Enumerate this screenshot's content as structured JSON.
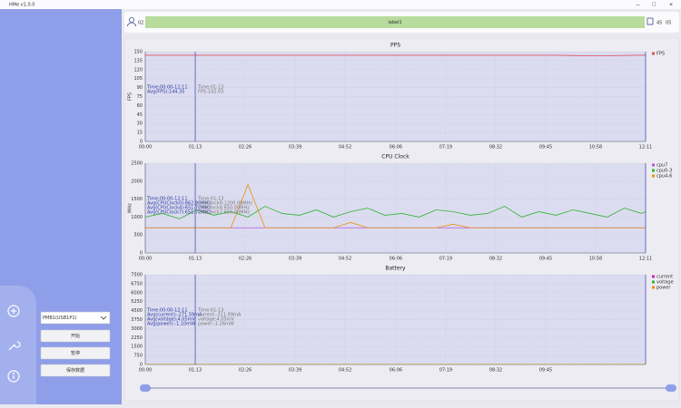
{
  "window": {
    "title": "HMe v1.0.0"
  },
  "toolbar": {
    "left_value": "02",
    "label": "label1",
    "right_values": [
      "45",
      "05"
    ]
  },
  "sidebar": {
    "device": "PMB1(USB1P1)",
    "buttons": [
      "开始",
      "暂停",
      "保存数据"
    ]
  },
  "chart_data": [
    {
      "type": "line",
      "title": "PPS",
      "ylabel": "FPS",
      "legend": "right",
      "grid": true,
      "xlim": [
        0,
        731
      ],
      "ylim": [
        0,
        150
      ],
      "xticks": [
        {
          "value": 0,
          "label": "00:00"
        },
        {
          "value": 73,
          "label": "01:13"
        },
        {
          "value": 146,
          "label": "02:26"
        },
        {
          "value": 219,
          "label": "03:39"
        },
        {
          "value": 292,
          "label": "04:52"
        },
        {
          "value": 366,
          "label": "06:06"
        },
        {
          "value": 439,
          "label": "07:19"
        },
        {
          "value": 512,
          "label": "08:32"
        },
        {
          "value": 585,
          "label": "09:45"
        },
        {
          "value": 658,
          "label": "10:58"
        },
        {
          "value": 731,
          "label": "12:11"
        }
      ],
      "yticks": [
        0,
        15,
        30,
        45,
        60,
        75,
        90,
        105,
        120,
        135,
        150
      ],
      "cursor": 73,
      "summary": [
        "Time:00:00-12:11",
        "Avg(FPS):144.35"
      ],
      "readout": [
        "Time:01:13",
        "FPS:142.93"
      ],
      "series": [
        {
          "name": "FPS",
          "color": "#e0505a",
          "x": [
            0,
            60,
            120,
            180,
            240,
            300,
            360,
            420,
            480,
            540,
            600,
            660,
            720,
            731
          ],
          "values": [
            144,
            144,
            144,
            144,
            144,
            144,
            144,
            144,
            144,
            144,
            144,
            143,
            144,
            144
          ]
        }
      ]
    },
    {
      "type": "line",
      "title": "CPU Clock",
      "ylabel": "MHz",
      "legend": "right",
      "grid": true,
      "xlim": [
        0,
        731
      ],
      "ylim": [
        0,
        2500
      ],
      "xticks": [
        {
          "value": 0,
          "label": "00:00"
        },
        {
          "value": 73,
          "label": "01:13"
        },
        {
          "value": 146,
          "label": "02:26"
        },
        {
          "value": 219,
          "label": "03:39"
        },
        {
          "value": 292,
          "label": "04:52"
        },
        {
          "value": 366,
          "label": "06:06"
        },
        {
          "value": 439,
          "label": "07:19"
        },
        {
          "value": 512,
          "label": "08:32"
        },
        {
          "value": 585,
          "label": "09:45"
        },
        {
          "value": 658,
          "label": "10:58"
        },
        {
          "value": 731,
          "label": "12:11"
        }
      ],
      "yticks": [
        0,
        500,
        1000,
        1500,
        2000,
        2500
      ],
      "cursor": 73,
      "summary": [
        "Time:00:00-12:11",
        "Avg(CPUClock0):862.93MHz",
        "Avg(CPUClock4):651.72MHz",
        "Avg(CPUClock7):651.72MHz"
      ],
      "readout": [
        "Time:01:13",
        "CPUClock0:1200.00MHz",
        "CPUClock4:650.00MHz",
        "CPUClock7:650.00MHz"
      ],
      "series": [
        {
          "name": "cpu7",
          "color": "#b455d8",
          "x": [
            0,
            25,
            50,
            75,
            100,
            125,
            150,
            175,
            200,
            225,
            250,
            275,
            300,
            325,
            350,
            375,
            400,
            425,
            450,
            475,
            500,
            525,
            550,
            575,
            600,
            625,
            650,
            675,
            700,
            725,
            731
          ],
          "values": [
            700,
            700,
            700,
            700,
            700,
            700,
            700,
            700,
            700,
            700,
            700,
            700,
            700,
            700,
            700,
            700,
            700,
            700,
            700,
            700,
            700,
            700,
            700,
            700,
            700,
            700,
            700,
            700,
            700,
            700,
            700
          ]
        },
        {
          "name": "cpu0-3",
          "color": "#2db52d",
          "x": [
            0,
            25,
            50,
            75,
            100,
            125,
            150,
            175,
            200,
            225,
            250,
            275,
            300,
            325,
            350,
            375,
            400,
            425,
            450,
            475,
            500,
            525,
            550,
            575,
            600,
            625,
            650,
            675,
            700,
            725,
            731
          ],
          "values": [
            1000,
            1100,
            950,
            1200,
            1050,
            1150,
            1000,
            1300,
            1100,
            1050,
            1200,
            1000,
            1150,
            1250,
            1050,
            1100,
            1000,
            1200,
            1150,
            1050,
            1100,
            1300,
            1000,
            1150,
            1050,
            1200,
            1100,
            1000,
            1250,
            1100,
            1150
          ]
        },
        {
          "name": "cpu4-6",
          "color": "#e8900a",
          "x": [
            0,
            25,
            50,
            75,
            100,
            125,
            150,
            175,
            200,
            225,
            250,
            275,
            300,
            325,
            350,
            375,
            400,
            425,
            450,
            475,
            500,
            525,
            550,
            575,
            600,
            625,
            650,
            675,
            700,
            725,
            731
          ],
          "values": [
            700,
            700,
            700,
            700,
            700,
            700,
            1900,
            700,
            700,
            700,
            700,
            700,
            850,
            700,
            700,
            700,
            700,
            700,
            800,
            700,
            700,
            700,
            700,
            700,
            700,
            700,
            700,
            700,
            700,
            700,
            700
          ]
        }
      ]
    },
    {
      "type": "line",
      "title": "Battery",
      "ylabel": "",
      "legend": "right",
      "grid": true,
      "xlim": [
        0,
        731
      ],
      "ylim": [
        0,
        7500
      ],
      "xticks": [
        {
          "value": 0,
          "label": "00:00"
        },
        {
          "value": 73,
          "label": "01:13"
        },
        {
          "value": 146,
          "label": "02:26"
        },
        {
          "value": 219,
          "label": "03:39"
        },
        {
          "value": 292,
          "label": "04:52"
        },
        {
          "value": 366,
          "label": "06:06"
        },
        {
          "value": 439,
          "label": "07:19"
        },
        {
          "value": 512,
          "label": "08:32"
        },
        {
          "value": 585,
          "label": "09:45"
        }
      ],
      "yticks": [
        0,
        750,
        1500,
        2250,
        3000,
        3750,
        4500,
        5250,
        6000,
        6750,
        7500
      ],
      "cursor": 73,
      "summary": [
        "Time:00:00-12:11",
        "Avg(current):-271.59mA",
        "Avg(voltage):4.05mV",
        "Avg(power):-1.10mW"
      ],
      "readout": [
        "Time:01:13",
        "current:-311.99mA",
        "voltage:4.05mV",
        "power:-1.26mW"
      ],
      "series": [
        {
          "name": "current",
          "color": "#d020c0",
          "x": [
            0,
            365,
            731
          ],
          "values": [
            -271,
            -272,
            -271
          ]
        },
        {
          "name": "voltage",
          "color": "#2db52d",
          "x": [
            0,
            365,
            731
          ],
          "values": [
            4,
            4,
            4
          ]
        },
        {
          "name": "power",
          "color": "#e8900a",
          "x": [
            0,
            365,
            731
          ],
          "values": [
            -1,
            -1,
            -1
          ]
        }
      ]
    }
  ]
}
